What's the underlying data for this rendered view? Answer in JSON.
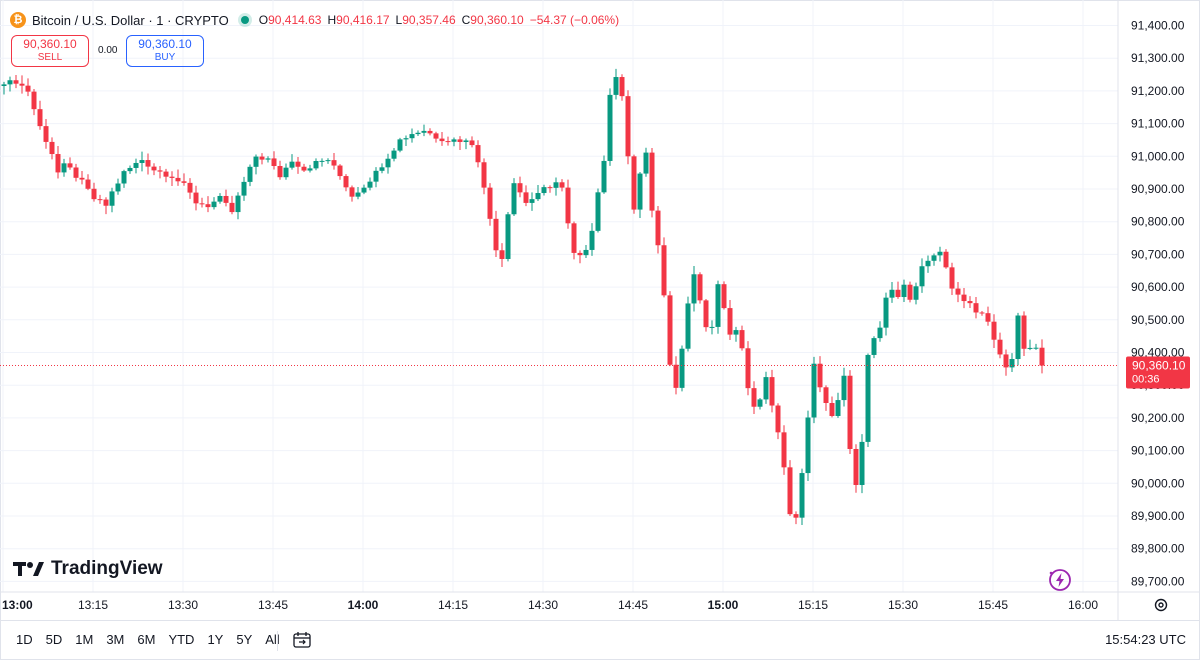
{
  "header": {
    "symbol_title": "Bitcoin / U.S. Dollar · 1 · CRYPTO",
    "open_label": "O",
    "open": "90,414.63",
    "high_label": "H",
    "high": "90,416.17",
    "low_label": "L",
    "low": "90,357.46",
    "close_label": "C",
    "close": "90,360.10",
    "change": "−54.37 (−0.06%)"
  },
  "trade": {
    "sell_price": "90,360.10",
    "sell_label": "SELL",
    "spread": "0.00",
    "buy_price": "90,360.10",
    "buy_label": "BUY"
  },
  "price_tag": {
    "price": "90,360.10",
    "countdown": "00:36"
  },
  "branding": {
    "logo_text": "TradingView"
  },
  "bottom_bar": {
    "ranges": [
      "1D",
      "5D",
      "1M",
      "3M",
      "6M",
      "YTD",
      "1Y",
      "5Y",
      "All"
    ],
    "clock": "15:54:23 UTC"
  },
  "icons": {
    "currency": "bitcoin-icon",
    "market_status": "market-open-dot-icon",
    "logo": "tradingview-logo-icon",
    "calendar": "calendar-range-icon",
    "settings": "gear-icon",
    "quick_action": "lightning-icon"
  },
  "colors": {
    "up": "#089981",
    "down": "#f23645",
    "accent": "#2962ff",
    "grid": "#f0f3fa"
  },
  "chart_data": {
    "type": "candlestick",
    "interval": "1 minute",
    "y_tick_labels": [
      "91,400.00",
      "91,300.00",
      "91,200.00",
      "91,100.00",
      "91,000.00",
      "90,900.00",
      "90,800.00",
      "90,700.00",
      "90,600.00",
      "90,500.00",
      "90,400.00",
      "90,300.00",
      "90,200.00",
      "90,100.00",
      "90,000.00",
      "89,900.00",
      "89,800.00",
      "89,700.00"
    ],
    "x_tick_labels": [
      {
        "label": "13:00",
        "bold": true
      },
      {
        "label": "13:15",
        "bold": false
      },
      {
        "label": "13:30",
        "bold": false
      },
      {
        "label": "13:45",
        "bold": false
      },
      {
        "label": "14:00",
        "bold": true
      },
      {
        "label": "14:15",
        "bold": false
      },
      {
        "label": "14:30",
        "bold": false
      },
      {
        "label": "14:45",
        "bold": false
      },
      {
        "label": "15:00",
        "bold": true
      },
      {
        "label": "15:15",
        "bold": false
      },
      {
        "label": "15:30",
        "bold": false
      },
      {
        "label": "15:45",
        "bold": false
      },
      {
        "label": "16:00",
        "bold": false
      }
    ],
    "ylim": [
      89680,
      91420
    ],
    "time_range": [
      "13:00",
      "16:00"
    ],
    "first_candle": "13:00",
    "last_price": 90360.1,
    "anchors": [
      [
        0,
        91220
      ],
      [
        2,
        91230
      ],
      [
        4,
        91200
      ],
      [
        6,
        91090
      ],
      [
        8,
        91010
      ],
      [
        9,
        90950
      ],
      [
        10,
        90970
      ],
      [
        11,
        90960
      ],
      [
        13,
        90920
      ],
      [
        15,
        90870
      ],
      [
        17,
        90850
      ],
      [
        18,
        90890
      ],
      [
        20,
        90950
      ],
      [
        23,
        90990
      ],
      [
        25,
        90960
      ],
      [
        28,
        90940
      ],
      [
        30,
        90910
      ],
      [
        32,
        90860
      ],
      [
        34,
        90850
      ],
      [
        36,
        90870
      ],
      [
        38,
        90830
      ],
      [
        40,
        90920
      ],
      [
        42,
        91000
      ],
      [
        44,
        90990
      ],
      [
        46,
        90940
      ],
      [
        48,
        90990
      ],
      [
        50,
        90960
      ],
      [
        52,
        90980
      ],
      [
        54,
        90990
      ],
      [
        56,
        90940
      ],
      [
        58,
        90880
      ],
      [
        60,
        90910
      ],
      [
        62,
        90950
      ],
      [
        64,
        91000
      ],
      [
        66,
        91050
      ],
      [
        68,
        91070
      ],
      [
        70,
        91080
      ],
      [
        72,
        91060
      ],
      [
        74,
        91050
      ],
      [
        76,
        91050
      ],
      [
        78,
        91040
      ],
      [
        79,
        90990
      ],
      [
        80,
        90900
      ],
      [
        81,
        90810
      ],
      [
        82,
        90720
      ],
      [
        83,
        90690
      ],
      [
        84,
        90830
      ],
      [
        85,
        90920
      ],
      [
        86,
        90890
      ],
      [
        87,
        90860
      ],
      [
        89,
        90880
      ],
      [
        90,
        90900
      ],
      [
        92,
        90920
      ],
      [
        93,
        90900
      ],
      [
        94,
        90790
      ],
      [
        95,
        90700
      ],
      [
        96,
        90690
      ],
      [
        97,
        90720
      ],
      [
        98,
        90780
      ],
      [
        99,
        90890
      ],
      [
        100,
        90990
      ],
      [
        101,
        91180
      ],
      [
        102,
        91250
      ],
      [
        103,
        91190
      ],
      [
        104,
        91000
      ],
      [
        105,
        90830
      ],
      [
        106,
        90950
      ],
      [
        107,
        91010
      ],
      [
        108,
        90830
      ],
      [
        109,
        90720
      ],
      [
        110,
        90580
      ],
      [
        111,
        90360
      ],
      [
        112,
        90300
      ],
      [
        113,
        90420
      ],
      [
        114,
        90550
      ],
      [
        115,
        90640
      ],
      [
        116,
        90560
      ],
      [
        117,
        90470
      ],
      [
        118,
        90480
      ],
      [
        119,
        90600
      ],
      [
        120,
        90540
      ],
      [
        121,
        90450
      ],
      [
        122,
        90460
      ],
      [
        123,
        90420
      ],
      [
        124,
        90300
      ],
      [
        125,
        90230
      ],
      [
        126,
        90260
      ],
      [
        127,
        90330
      ],
      [
        128,
        90230
      ],
      [
        129,
        90160
      ],
      [
        130,
        90050
      ],
      [
        131,
        89900
      ],
      [
        132,
        89890
      ],
      [
        133,
        90040
      ],
      [
        134,
        90200
      ],
      [
        135,
        90360
      ],
      [
        136,
        90300
      ],
      [
        137,
        90240
      ],
      [
        138,
        90200
      ],
      [
        139,
        90260
      ],
      [
        140,
        90330
      ],
      [
        141,
        90100
      ],
      [
        142,
        89990
      ],
      [
        143,
        90120
      ],
      [
        144,
        90400
      ],
      [
        145,
        90440
      ],
      [
        146,
        90470
      ],
      [
        147,
        90560
      ],
      [
        148,
        90590
      ],
      [
        149,
        90570
      ],
      [
        150,
        90600
      ],
      [
        151,
        90570
      ],
      [
        152,
        90610
      ],
      [
        153,
        90660
      ],
      [
        154,
        90680
      ],
      [
        155,
        90690
      ],
      [
        156,
        90700
      ],
      [
        157,
        90660
      ],
      [
        158,
        90600
      ],
      [
        159,
        90580
      ],
      [
        160,
        90550
      ],
      [
        161,
        90550
      ],
      [
        162,
        90530
      ],
      [
        163,
        90520
      ],
      [
        164,
        90500
      ],
      [
        165,
        90440
      ],
      [
        166,
        90390
      ],
      [
        167,
        90350
      ],
      [
        168,
        90380
      ],
      [
        169,
        90510
      ],
      [
        170,
        90420
      ],
      [
        171,
        90410
      ],
      [
        172,
        90414.63
      ],
      [
        173,
        90360.1
      ]
    ]
  }
}
